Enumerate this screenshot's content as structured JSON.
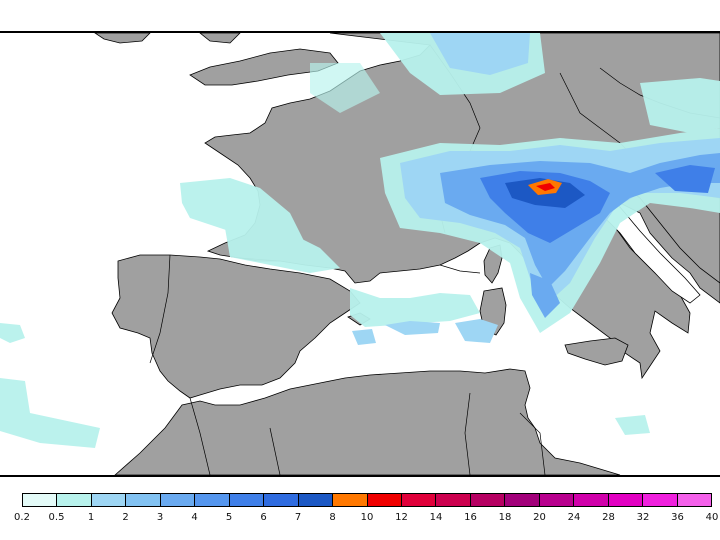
{
  "map": {
    "colors": {
      "sea": "#ffffff",
      "land": "#a0a0a0",
      "border": "#000000"
    },
    "regions": [
      "Europe",
      "North Africa",
      "Mediterranean Sea"
    ]
  },
  "legend": {
    "swatches": [
      {
        "color": "#e4fbf8"
      },
      {
        "color": "#b8f2ec"
      },
      {
        "color": "#9ed6f4"
      },
      {
        "color": "#82c2f2"
      },
      {
        "color": "#6aaaf0"
      },
      {
        "color": "#5596ee"
      },
      {
        "color": "#3f7fe8"
      },
      {
        "color": "#2f6ce0"
      },
      {
        "color": "#1c58c4"
      },
      {
        "color": "#ff7800"
      },
      {
        "color": "#f00000"
      },
      {
        "color": "#e0003a"
      },
      {
        "color": "#cc004e"
      },
      {
        "color": "#b60062"
      },
      {
        "color": "#a2007a"
      },
      {
        "color": "#b8008e"
      },
      {
        "color": "#d000aa"
      },
      {
        "color": "#e200c2"
      },
      {
        "color": "#f020de"
      },
      {
        "color": "#f460ea"
      }
    ],
    "labels": [
      "0.2",
      "0.5",
      "1",
      "2",
      "3",
      "4",
      "5",
      "6",
      "7",
      "8",
      "10",
      "12",
      "14",
      "16",
      "18",
      "20",
      "24",
      "28",
      "32",
      "36",
      "40"
    ]
  }
}
